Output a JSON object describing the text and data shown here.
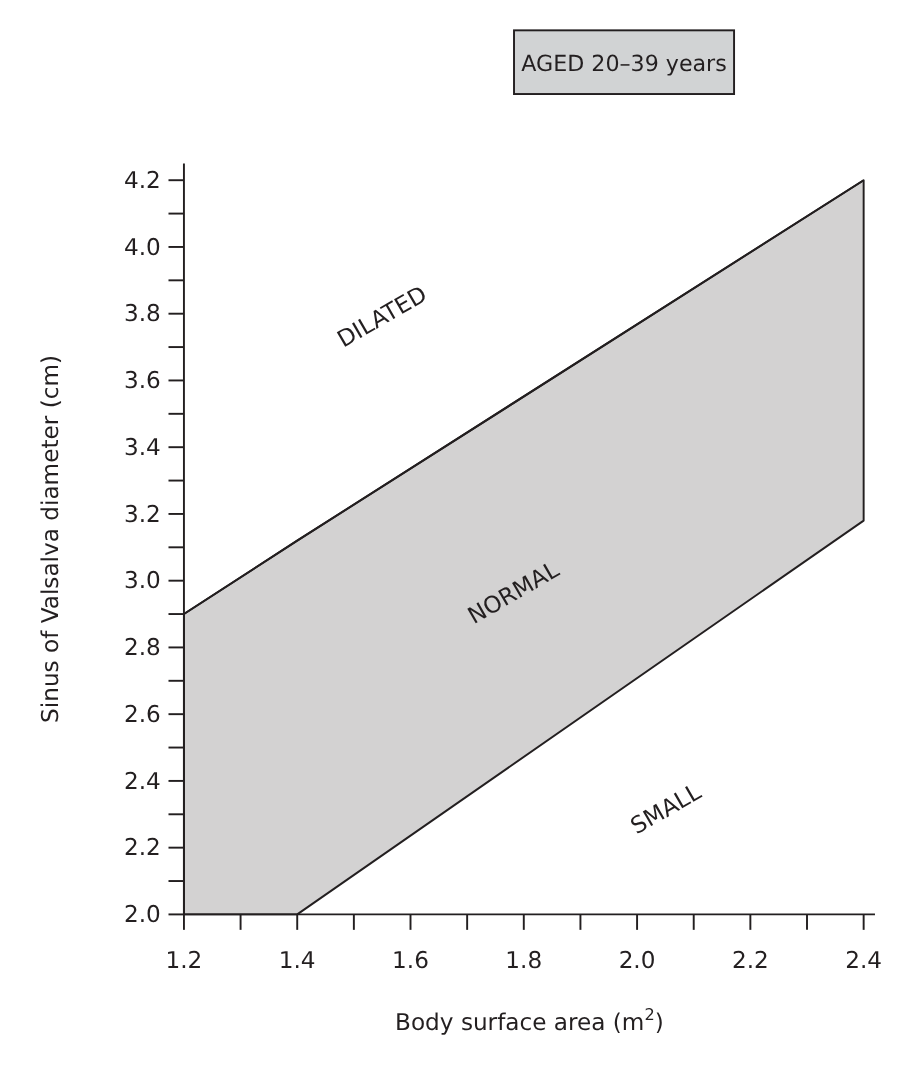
{
  "chart_data": {
    "type": "line",
    "title": "AGED 20–39 years",
    "xlabel": "Body surface area (m$^{2}$)",
    "ylabel": "Sinus of Valsalva diameter (cm)",
    "x": [
      1.2,
      1.4,
      2.4
    ],
    "series": [
      {
        "color": "#231f20",
        "values": [
          2.9,
          3.12,
          4.2
        ],
        "lower": [
          2.0,
          2.0,
          3.18
        ],
        "upper": [
          2.9,
          3.12,
          4.2
        ]
      }
    ],
    "xlim": [
      1.2,
      2.42
    ],
    "ylim": [
      2.0,
      4.25
    ],
    "xticks": [
      1.2,
      {
        "value": 1.3,
        "label": null
      },
      1.4,
      {
        "value": 1.5,
        "label": null
      },
      1.6,
      {
        "value": 1.7,
        "label": null
      },
      1.8,
      {
        "value": 1.9,
        "label": null
      },
      {
        "value": 2,
        "label": "2.0"
      },
      {
        "value": 2.1,
        "label": null
      },
      2.2,
      {
        "value": 2.3,
        "label": null
      },
      2.4
    ],
    "yticks": [
      {
        "value": 2,
        "label": "2.0"
      },
      {
        "value": 2.1,
        "label": null
      },
      2.2,
      {
        "value": 2.3,
        "label": null
      },
      2.4,
      {
        "value": 2.5,
        "label": null
      },
      2.6,
      {
        "value": 2.7,
        "label": null
      },
      2.8,
      {
        "value": 2.9,
        "label": null
      },
      {
        "value": 3,
        "label": "3.0"
      },
      {
        "value": 3.1,
        "label": null
      },
      3.2,
      {
        "value": 3.3,
        "label": null
      },
      3.4,
      {
        "value": 3.5,
        "label": null
      },
      3.6,
      {
        "value": 3.7,
        "label": null
      },
      3.8,
      {
        "value": 3.9,
        "label": null
      },
      {
        "value": 4,
        "label": "4.0"
      },
      {
        "value": 4.1,
        "label": null
      },
      4.2
    ],
    "annotations": [
      "DILATED",
      "NORMAL",
      "SMALL"
    ],
    "grid": false
  }
}
